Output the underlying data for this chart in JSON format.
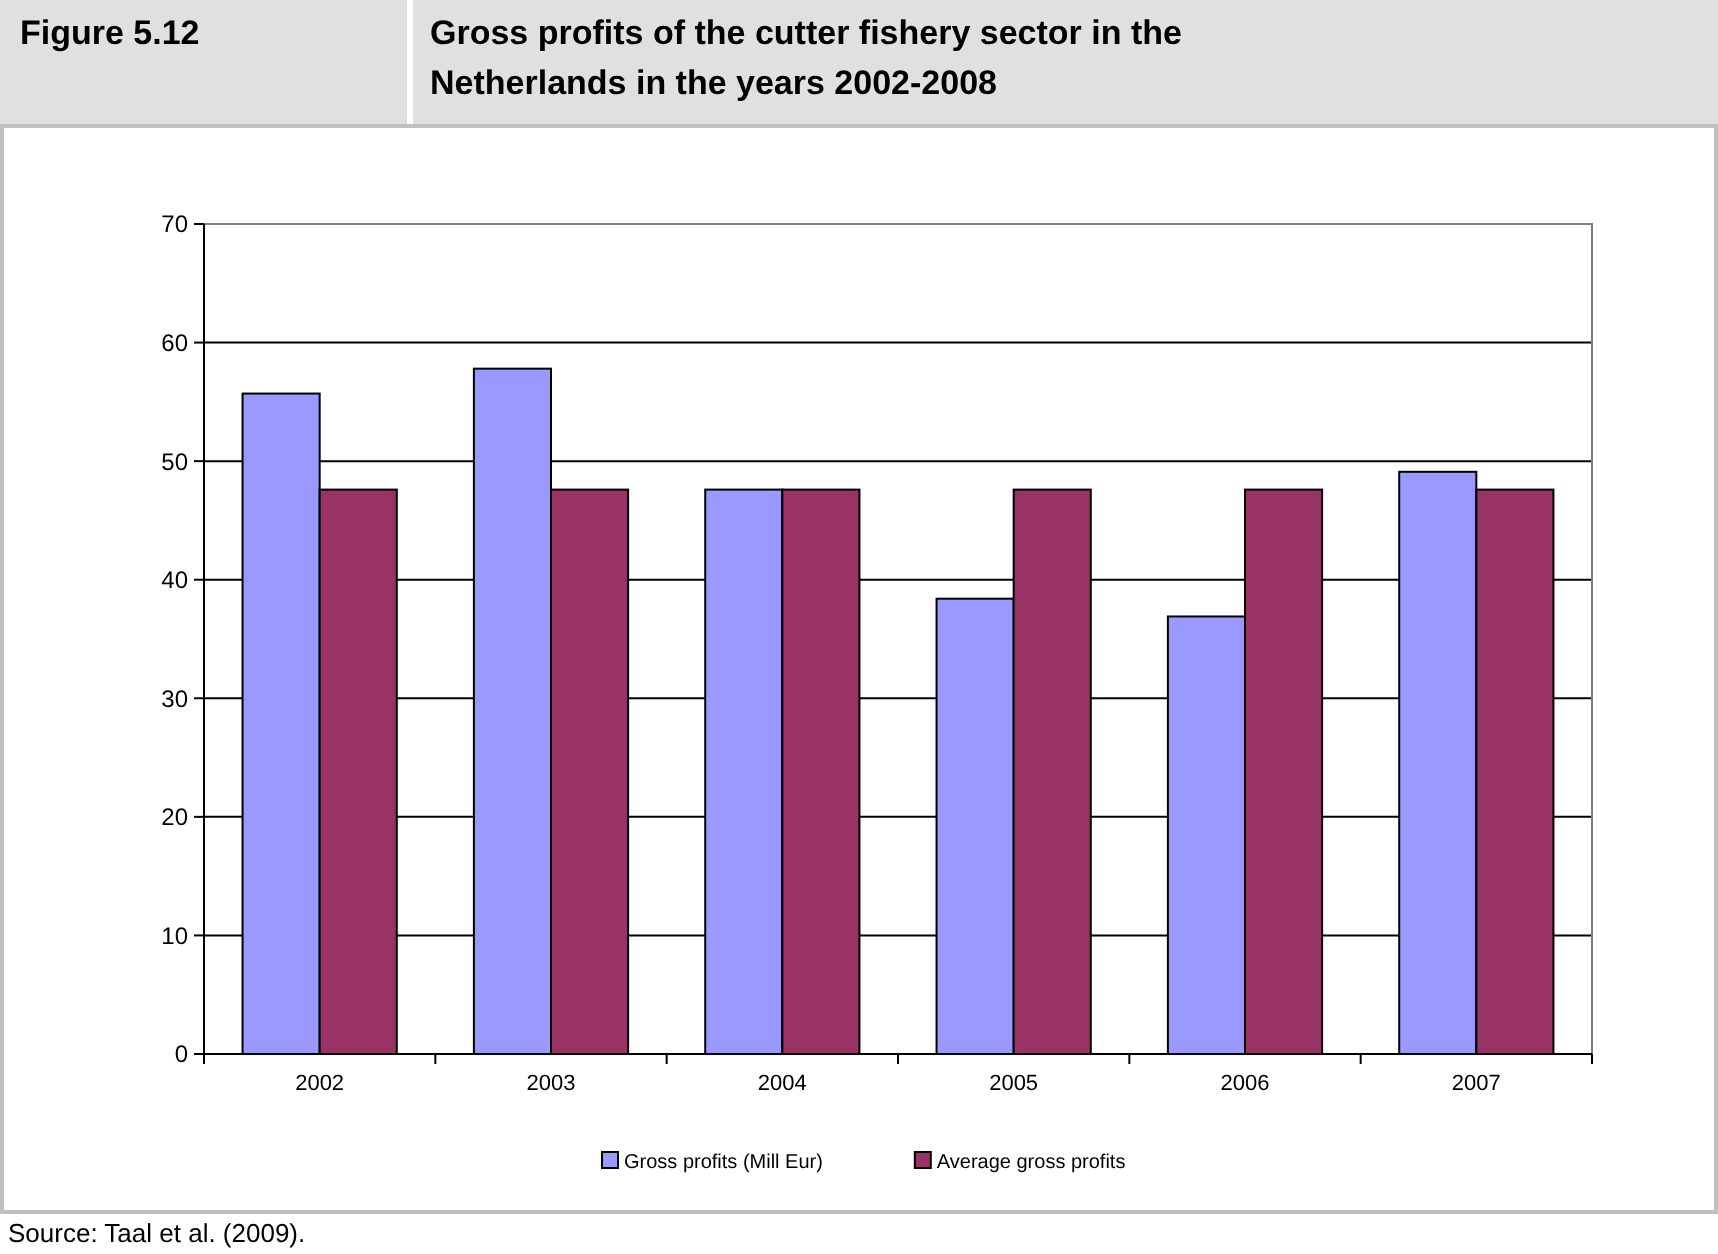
{
  "chart_data": {
    "type": "bar",
    "title": "Gross profits of the cutter fishery sector in the Netherlands in the years 2002-2008",
    "annotations": [
      "Figure 5.12",
      "Source: Taal et al. (2009)."
    ],
    "categories": [
      "2002",
      "2003",
      "2004",
      "2005",
      "2006",
      "2007"
    ],
    "series": [
      {
        "name": "Gross profits (Mill Eur)",
        "color": "#9999ff",
        "values": [
          55.7,
          57.8,
          47.6,
          38.4,
          36.9,
          49.1
        ]
      },
      {
        "name": "Average gross profits",
        "color": "#993366",
        "values": [
          47.6,
          47.6,
          47.6,
          47.6,
          47.6,
          47.6
        ]
      }
    ],
    "ylim": [
      0,
      70
    ],
    "yticks": [
      0,
      10,
      20,
      30,
      40,
      50,
      60,
      70
    ],
    "grid": "y",
    "legend": "bottom"
  }
}
